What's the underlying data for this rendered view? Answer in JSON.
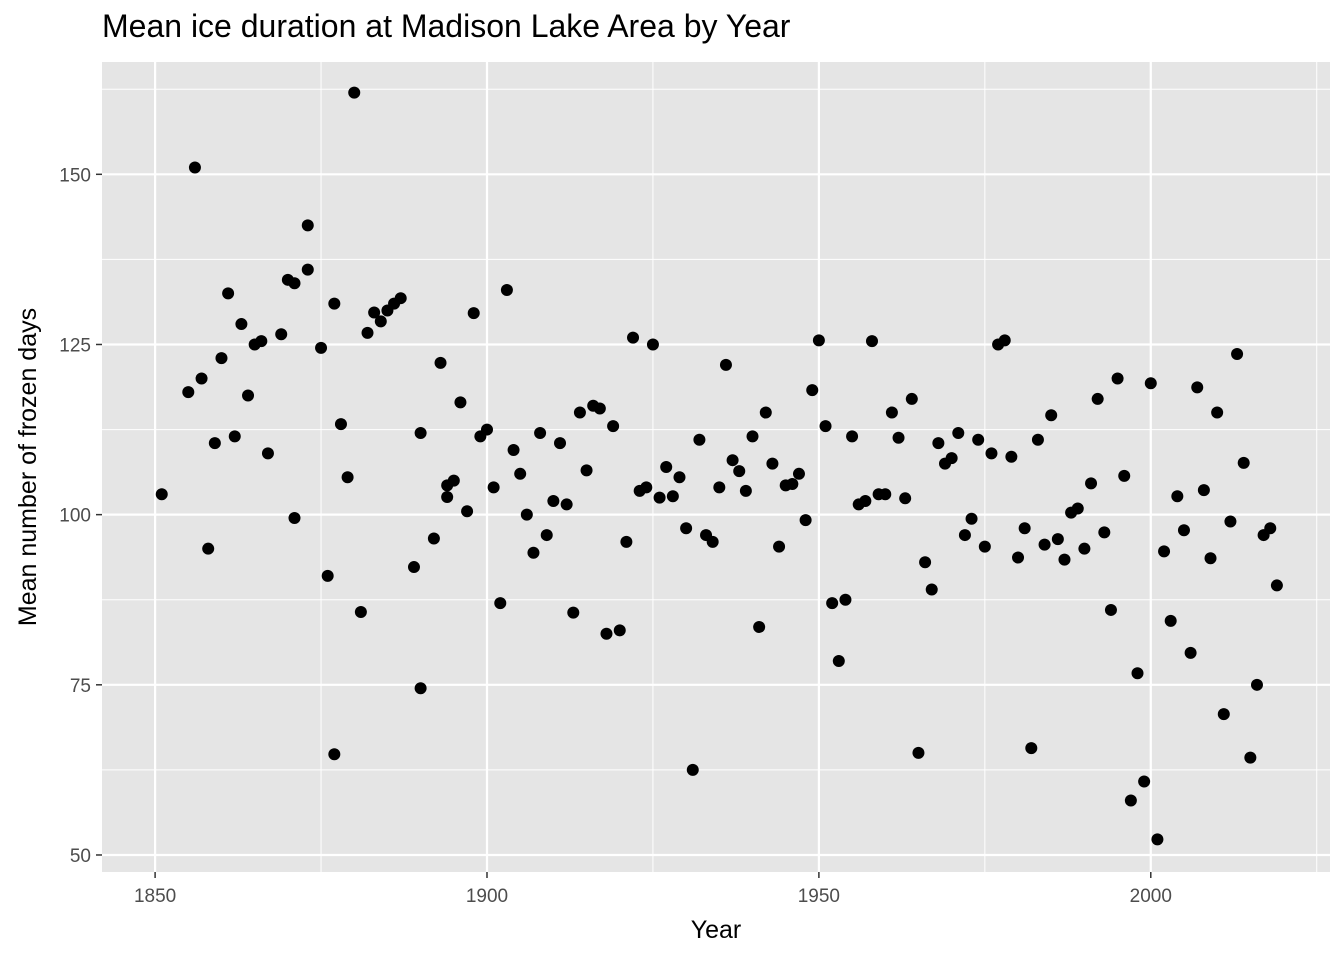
{
  "chart_data": {
    "type": "scatter",
    "title": "Mean ice duration at Madison Lake Area by Year",
    "xlabel": "Year",
    "ylabel": "Mean number of frozen days",
    "xlim": [
      1842,
      2027
    ],
    "ylim": [
      47.5,
      166.5
    ],
    "x_ticks": [
      1850,
      1900,
      1950,
      2000
    ],
    "y_ticks": [
      50,
      75,
      100,
      125,
      150
    ],
    "x_tick_labels": [
      "1850",
      "1900",
      "1950",
      "2000"
    ],
    "y_tick_labels": [
      "50",
      "75",
      "100",
      "125",
      "150"
    ],
    "panel_background": "#e5e5e5",
    "grid_color": "#ffffff",
    "point_color": "#000000",
    "grid": true,
    "legend": "none",
    "x": [
      1851,
      1855,
      1856,
      1857,
      1858,
      1859,
      1860,
      1861,
      1862,
      1863,
      1864,
      1865,
      1866,
      1867,
      1869,
      1870,
      1871,
      1871,
      1873,
      1873,
      1875,
      1876,
      1877,
      1877,
      1878,
      1879,
      1880,
      1881,
      1882,
      1883,
      1884,
      1885,
      1886,
      1887,
      1889,
      1890,
      1890,
      1892,
      1893,
      1894,
      1894,
      1895,
      1896,
      1897,
      1898,
      1899,
      1900,
      1901,
      1902,
      1903,
      1904,
      1905,
      1906,
      1907,
      1908,
      1909,
      1910,
      1911,
      1912,
      1913,
      1914,
      1915,
      1916,
      1917,
      1918,
      1919,
      1920,
      1921,
      1922,
      1923,
      1924,
      1925,
      1926,
      1927,
      1928,
      1929,
      1930,
      1931,
      1932,
      1933,
      1934,
      1935,
      1936,
      1937,
      1938,
      1939,
      1940,
      1941,
      1942,
      1943,
      1944,
      1945,
      1946,
      1947,
      1948,
      1949,
      1950,
      1951,
      1952,
      1953,
      1954,
      1955,
      1956,
      1957,
      1958,
      1959,
      1960,
      1961,
      1962,
      1963,
      1964,
      1965,
      1966,
      1967,
      1968,
      1969,
      1970,
      1971,
      1972,
      1973,
      1974,
      1975,
      1976,
      1977,
      1978,
      1979,
      1980,
      1981,
      1982,
      1983,
      1984,
      1985,
      1986,
      1987,
      1988,
      1989,
      1990,
      1991,
      1992,
      1993,
      1994,
      1995,
      1996,
      1997,
      1998,
      1999,
      2000,
      2001,
      2002,
      2003,
      2004,
      2005,
      2006,
      2007,
      2008,
      2009,
      2010,
      2011,
      2012,
      2013,
      2014,
      2015,
      2016,
      2017,
      2018,
      2019
    ],
    "y": [
      103,
      118,
      151,
      120,
      95,
      110.5,
      123,
      132.5,
      111.5,
      128,
      117.5,
      125,
      125.5,
      109,
      126.5,
      134.5,
      99.5,
      134,
      142.5,
      136,
      124.5,
      91,
      131,
      64.8,
      113.3,
      105.5,
      162,
      85.7,
      126.7,
      129.7,
      128.4,
      130,
      131,
      131.8,
      92.3,
      74.5,
      112,
      96.5,
      122.3,
      104.3,
      102.6,
      105,
      116.5,
      100.5,
      129.6,
      111.5,
      112.5,
      104,
      87,
      133,
      109.5,
      106,
      100,
      94.4,
      112,
      97,
      102,
      110.5,
      101.5,
      85.6,
      115,
      106.5,
      116,
      115.6,
      82.5,
      113,
      83,
      96,
      126,
      103.5,
      104,
      125,
      102.5,
      107,
      102.7,
      105.5,
      98,
      62.5,
      111,
      97,
      96,
      104,
      122,
      108,
      106.4,
      103.5,
      111.5,
      83.5,
      115,
      107.5,
      95.3,
      104.3,
      104.5,
      106,
      99.2,
      118.3,
      125.6,
      113,
      87,
      78.5,
      87.5,
      111.5,
      101.5,
      102,
      125.5,
      103,
      103,
      115,
      111.3,
      102.4,
      117,
      65,
      93,
      89,
      110.5,
      107.5,
      108.3,
      112,
      97,
      99.4,
      111,
      95.3,
      109,
      125,
      125.6,
      108.5,
      93.7,
      98,
      65.7,
      111,
      95.6,
      114.6,
      96.4,
      93.4,
      100.3,
      100.9,
      95,
      104.6,
      117,
      97.4,
      86,
      120,
      105.7,
      58,
      76.7,
      60.8,
      119.3,
      52.3,
      94.6,
      84.4,
      102.7,
      97.7,
      79.7,
      118.7,
      103.6,
      93.6,
      115,
      70.7,
      99,
      123.6,
      107.6,
      64.3,
      75,
      97,
      98,
      89.6
    ]
  }
}
